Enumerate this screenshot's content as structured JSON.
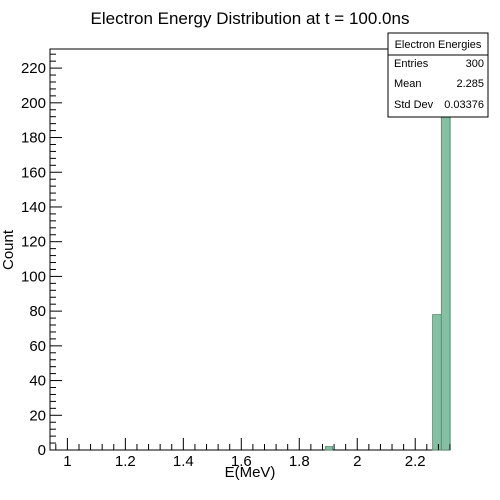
{
  "chart_data": {
    "type": "bar",
    "title": "Electron Energy Distribution at t = 100.0ns",
    "xlabel": "E(MeV)",
    "ylabel": "Count",
    "xlim": [
      0.94,
      2.32
    ],
    "ylim": [
      0,
      231
    ],
    "x_ticks": [
      "1",
      "1.2",
      "1.4",
      "1.6",
      "1.8",
      "2",
      "2.2"
    ],
    "y_ticks": [
      "0",
      "20",
      "40",
      "60",
      "80",
      "100",
      "120",
      "140",
      "160",
      "180",
      "200",
      "220"
    ],
    "bars": [
      {
        "x0": 1.89,
        "x1": 1.915,
        "count": 2
      },
      {
        "x0": 2.26,
        "x1": 2.29,
        "count": 78
      },
      {
        "x0": 2.29,
        "x1": 2.32,
        "count": 220
      }
    ],
    "bar_color": "#86bfa3",
    "grid": false,
    "stats_box": {
      "name": "Electron Energies",
      "rows": [
        {
          "label": "Entries",
          "value": "300"
        },
        {
          "label": "Mean",
          "value": "2.285"
        },
        {
          "label": "Std Dev",
          "value": "0.03376"
        }
      ]
    }
  }
}
